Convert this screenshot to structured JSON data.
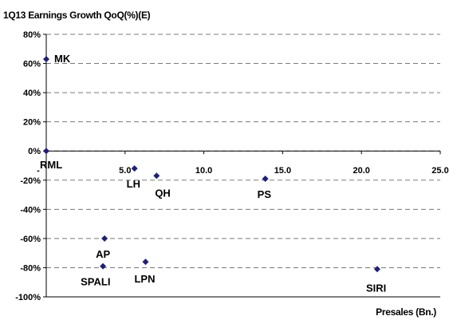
{
  "chart_data": {
    "type": "scatter",
    "title": "1Q13 Earnings Growth QoQ(%)(E)",
    "xlabel": "Presales (Bn.)",
    "ylabel": "",
    "xlim": [
      0,
      25
    ],
    "ylim": [
      -100,
      80
    ],
    "x_ticks": [
      "-",
      "5.0",
      "10.0",
      "15.0",
      "20.0",
      "25.0"
    ],
    "y_ticks": [
      "80%",
      "60%",
      "40%",
      "20%",
      "0%",
      "-20%",
      "-40%",
      "-60%",
      "-80%",
      "-100%"
    ],
    "grid": "horizontal dashed",
    "marker_color": "#1f1f7a",
    "points": [
      {
        "label": "MK",
        "x": 0.0,
        "y": 63
      },
      {
        "label": "RML",
        "x": 0.0,
        "y": 0
      },
      {
        "label": "LH",
        "x": 5.6,
        "y": -12
      },
      {
        "label": "QH",
        "x": 7.0,
        "y": -17
      },
      {
        "label": "PS",
        "x": 13.9,
        "y": -19
      },
      {
        "label": "AP",
        "x": 3.7,
        "y": -60
      },
      {
        "label": "SPALI",
        "x": 3.6,
        "y": -79
      },
      {
        "label": "LPN",
        "x": 6.3,
        "y": -76
      },
      {
        "label": "SIRI",
        "x": 21.0,
        "y": -81
      }
    ]
  }
}
